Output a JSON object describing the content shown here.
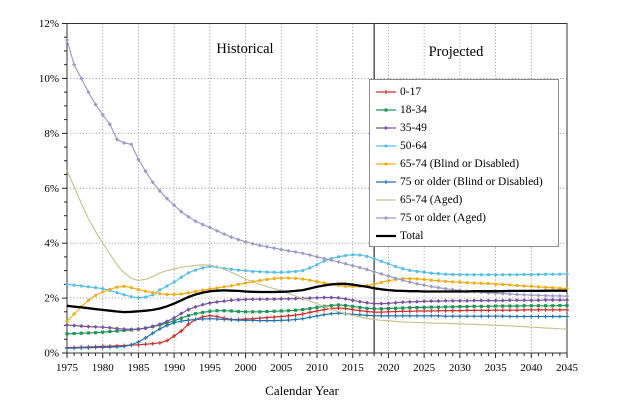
{
  "chart_data": {
    "type": "line",
    "title": "",
    "xlabel": "Calendar Year",
    "ylabel": "",
    "grid": "dotted",
    "legend_position": "upper-right-inside",
    "annotations": {
      "historical": "Historical",
      "projected": "Projected"
    },
    "divider_year": 2018,
    "x_start": 1975,
    "x_end": 2045,
    "ylim": [
      0,
      12
    ],
    "x_ticks": [
      1975,
      1980,
      1985,
      1990,
      1995,
      2000,
      2005,
      2010,
      2015,
      2020,
      2025,
      2030,
      2035,
      2040,
      2045
    ],
    "y_ticks": [
      {
        "v": 0,
        "label": "0%"
      },
      {
        "v": 2,
        "label": "2%"
      },
      {
        "v": 4,
        "label": "4%"
      },
      {
        "v": 6,
        "label": "6%"
      },
      {
        "v": 8,
        "label": "8%"
      },
      {
        "v": 10,
        "label": "10%"
      },
      {
        "v": 12,
        "label": "12%"
      }
    ],
    "years": [
      1975,
      1976,
      1977,
      1978,
      1979,
      1980,
      1981,
      1982,
      1983,
      1984,
      1985,
      1986,
      1987,
      1988,
      1989,
      1990,
      1991,
      1992,
      1993,
      1994,
      1995,
      1996,
      1997,
      1998,
      1999,
      2000,
      2001,
      2002,
      2003,
      2004,
      2005,
      2006,
      2007,
      2008,
      2009,
      2010,
      2011,
      2012,
      2013,
      2014,
      2015,
      2016,
      2017,
      2018,
      2019,
      2020,
      2021,
      2022,
      2023,
      2024,
      2025,
      2026,
      2027,
      2028,
      2029,
      2030,
      2031,
      2032,
      2033,
      2034,
      2035,
      2036,
      2037,
      2038,
      2039,
      2040,
      2041,
      2042,
      2043,
      2044,
      2045
    ],
    "series": [
      {
        "name": "0-17",
        "color": "#d22b2b",
        "marker": "plus",
        "width": 1.2,
        "values": [
          0.2,
          0.2,
          0.21,
          0.22,
          0.23,
          0.24,
          0.25,
          0.26,
          0.27,
          0.29,
          0.3,
          0.32,
          0.34,
          0.37,
          0.45,
          0.62,
          0.8,
          1.05,
          1.22,
          1.32,
          1.36,
          1.33,
          1.27,
          1.22,
          1.22,
          1.24,
          1.25,
          1.27,
          1.29,
          1.31,
          1.33,
          1.35,
          1.38,
          1.42,
          1.48,
          1.53,
          1.58,
          1.62,
          1.64,
          1.62,
          1.58,
          1.54,
          1.51,
          1.49,
          1.49,
          1.5,
          1.51,
          1.52,
          1.52,
          1.53,
          1.53,
          1.53,
          1.54,
          1.54,
          1.54,
          1.54,
          1.55,
          1.55,
          1.55,
          1.55,
          1.56,
          1.56,
          1.56,
          1.56,
          1.57,
          1.57,
          1.57,
          1.57,
          1.57,
          1.57,
          1.57
        ]
      },
      {
        "name": "18-34",
        "color": "#219658",
        "marker": "square",
        "width": 1.2,
        "values": [
          0.7,
          0.71,
          0.72,
          0.73,
          0.74,
          0.76,
          0.78,
          0.8,
          0.82,
          0.84,
          0.87,
          0.91,
          0.96,
          1.02,
          1.09,
          1.17,
          1.27,
          1.36,
          1.43,
          1.48,
          1.52,
          1.54,
          1.54,
          1.53,
          1.51,
          1.5,
          1.5,
          1.5,
          1.51,
          1.52,
          1.53,
          1.54,
          1.56,
          1.58,
          1.62,
          1.66,
          1.7,
          1.73,
          1.75,
          1.73,
          1.7,
          1.66,
          1.63,
          1.61,
          1.61,
          1.62,
          1.63,
          1.64,
          1.65,
          1.66,
          1.66,
          1.67,
          1.67,
          1.68,
          1.68,
          1.69,
          1.69,
          1.7,
          1.7,
          1.7,
          1.71,
          1.71,
          1.71,
          1.71,
          1.72,
          1.72,
          1.72,
          1.72,
          1.72,
          1.73,
          1.73
        ]
      },
      {
        "name": "35-49",
        "color": "#7a52a1",
        "marker": "diamond",
        "width": 1.2,
        "values": [
          1.02,
          1.0,
          0.98,
          0.96,
          0.95,
          0.94,
          0.92,
          0.89,
          0.87,
          0.86,
          0.87,
          0.9,
          0.97,
          1.05,
          1.15,
          1.28,
          1.44,
          1.58,
          1.68,
          1.76,
          1.82,
          1.86,
          1.89,
          1.92,
          1.94,
          1.95,
          1.96,
          1.96,
          1.96,
          1.96,
          1.97,
          1.97,
          1.98,
          1.99,
          2.0,
          2.01,
          2.02,
          2.02,
          2.01,
          1.97,
          1.92,
          1.87,
          1.83,
          1.8,
          1.8,
          1.81,
          1.83,
          1.85,
          1.86,
          1.87,
          1.88,
          1.89,
          1.89,
          1.9,
          1.9,
          1.9,
          1.9,
          1.91,
          1.91,
          1.91,
          1.91,
          1.91,
          1.92,
          1.92,
          1.92,
          1.92,
          1.92,
          1.93,
          1.93,
          1.93,
          1.93
        ]
      },
      {
        "name": "50-64",
        "color": "#56bee8",
        "marker": "circle",
        "width": 1.2,
        "values": [
          2.5,
          2.47,
          2.44,
          2.41,
          2.38,
          2.34,
          2.28,
          2.2,
          2.12,
          2.05,
          2.01,
          2.04,
          2.12,
          2.3,
          2.44,
          2.58,
          2.76,
          2.92,
          3.02,
          3.1,
          3.15,
          3.13,
          3.08,
          3.05,
          3.02,
          3.0,
          2.97,
          2.96,
          2.95,
          2.94,
          2.94,
          2.95,
          2.97,
          3.0,
          3.1,
          3.22,
          3.35,
          3.44,
          3.5,
          3.55,
          3.58,
          3.57,
          3.52,
          3.44,
          3.34,
          3.25,
          3.15,
          3.07,
          3.01,
          2.97,
          2.94,
          2.91,
          2.89,
          2.87,
          2.86,
          2.86,
          2.85,
          2.85,
          2.85,
          2.85,
          2.85,
          2.85,
          2.85,
          2.85,
          2.86,
          2.86,
          2.86,
          2.87,
          2.87,
          2.87,
          2.88
        ]
      },
      {
        "name": "65-74 (Blind or Disabled)",
        "color": "#f0ad18",
        "marker": "circle",
        "width": 1.2,
        "values": [
          1.15,
          1.42,
          1.68,
          1.92,
          2.1,
          2.22,
          2.32,
          2.4,
          2.43,
          2.38,
          2.31,
          2.25,
          2.2,
          2.16,
          2.13,
          2.13,
          2.15,
          2.19,
          2.24,
          2.29,
          2.33,
          2.37,
          2.41,
          2.45,
          2.5,
          2.55,
          2.6,
          2.64,
          2.68,
          2.71,
          2.73,
          2.73,
          2.72,
          2.69,
          2.65,
          2.6,
          2.55,
          2.5,
          2.46,
          2.43,
          2.42,
          2.43,
          2.46,
          2.51,
          2.57,
          2.63,
          2.68,
          2.71,
          2.71,
          2.7,
          2.68,
          2.65,
          2.63,
          2.61,
          2.59,
          2.58,
          2.56,
          2.55,
          2.54,
          2.53,
          2.51,
          2.5,
          2.48,
          2.46,
          2.44,
          2.43,
          2.41,
          2.39,
          2.38,
          2.36,
          2.35
        ]
      },
      {
        "name": "75 or older (Blind or Disabled)",
        "color": "#2272ae",
        "marker": "plus",
        "width": 1.2,
        "values": [
          0.18,
          0.18,
          0.19,
          0.19,
          0.2,
          0.2,
          0.21,
          0.22,
          0.24,
          0.3,
          0.4,
          0.55,
          0.72,
          0.88,
          1.0,
          1.1,
          1.16,
          1.2,
          1.22,
          1.24,
          1.25,
          1.24,
          1.22,
          1.21,
          1.2,
          1.19,
          1.19,
          1.18,
          1.18,
          1.18,
          1.19,
          1.2,
          1.22,
          1.25,
          1.3,
          1.35,
          1.4,
          1.43,
          1.45,
          1.43,
          1.41,
          1.39,
          1.37,
          1.36,
          1.35,
          1.35,
          1.35,
          1.35,
          1.35,
          1.35,
          1.35,
          1.35,
          1.35,
          1.34,
          1.34,
          1.34,
          1.34,
          1.34,
          1.34,
          1.34,
          1.34,
          1.34,
          1.33,
          1.33,
          1.33,
          1.33,
          1.33,
          1.33,
          1.33,
          1.33,
          1.33
        ]
      },
      {
        "name": "65-74 (Aged)",
        "color": "#c9c391",
        "marker": "none",
        "width": 1.2,
        "values": [
          6.65,
          6.05,
          5.45,
          4.9,
          4.42,
          4.0,
          3.6,
          3.22,
          2.92,
          2.72,
          2.64,
          2.68,
          2.78,
          2.92,
          3.0,
          3.06,
          3.12,
          3.16,
          3.19,
          3.21,
          3.2,
          3.14,
          3.05,
          2.94,
          2.82,
          2.7,
          2.59,
          2.5,
          2.42,
          2.34,
          2.26,
          2.17,
          2.08,
          1.99,
          1.89,
          1.79,
          1.69,
          1.59,
          1.51,
          1.43,
          1.37,
          1.31,
          1.26,
          1.22,
          1.19,
          1.17,
          1.15,
          1.13,
          1.12,
          1.11,
          1.1,
          1.09,
          1.08,
          1.08,
          1.07,
          1.06,
          1.05,
          1.04,
          1.03,
          1.02,
          1.01,
          1.0,
          0.99,
          0.97,
          0.96,
          0.94,
          0.93,
          0.91,
          0.9,
          0.88,
          0.87
        ]
      },
      {
        "name": "75 or older (Aged)",
        "color": "#9c9cc8",
        "marker": "diamond",
        "width": 1.2,
        "values": [
          11.4,
          10.5,
          10.0,
          9.5,
          9.05,
          8.68,
          8.33,
          7.78,
          7.65,
          7.6,
          7.05,
          6.62,
          6.22,
          5.9,
          5.62,
          5.38,
          5.15,
          4.96,
          4.8,
          4.68,
          4.57,
          4.45,
          4.33,
          4.22,
          4.13,
          4.05,
          3.98,
          3.92,
          3.87,
          3.82,
          3.77,
          3.72,
          3.68,
          3.63,
          3.57,
          3.5,
          3.44,
          3.38,
          3.32,
          3.25,
          3.18,
          3.11,
          3.04,
          2.96,
          2.88,
          2.8,
          2.72,
          2.65,
          2.58,
          2.52,
          2.47,
          2.42,
          2.38,
          2.34,
          2.31,
          2.28,
          2.25,
          2.23,
          2.21,
          2.19,
          2.18,
          2.16,
          2.15,
          2.13,
          2.12,
          2.11,
          2.1,
          2.09,
          2.08,
          2.08,
          2.07
        ]
      },
      {
        "name": "Total",
        "color": "#000000",
        "marker": "none",
        "width": 2.3,
        "values": [
          1.72,
          1.69,
          1.66,
          1.63,
          1.6,
          1.57,
          1.54,
          1.51,
          1.49,
          1.5,
          1.52,
          1.54,
          1.57,
          1.62,
          1.7,
          1.8,
          1.92,
          2.04,
          2.13,
          2.2,
          2.25,
          2.27,
          2.28,
          2.27,
          2.26,
          2.24,
          2.23,
          2.22,
          2.22,
          2.22,
          2.23,
          2.24,
          2.26,
          2.29,
          2.35,
          2.41,
          2.46,
          2.5,
          2.52,
          2.52,
          2.49,
          2.45,
          2.41,
          2.36,
          2.32,
          2.29,
          2.27,
          2.26,
          2.25,
          2.25,
          2.24,
          2.24,
          2.24,
          2.24,
          2.24,
          2.24,
          2.24,
          2.25,
          2.25,
          2.25,
          2.25,
          2.25,
          2.26,
          2.26,
          2.26,
          2.26,
          2.26,
          2.27,
          2.27,
          2.27,
          2.27
        ]
      }
    ],
    "colors": {
      "grid": "#858585",
      "frame": "#333333",
      "divider": "#4a4a4a"
    }
  }
}
